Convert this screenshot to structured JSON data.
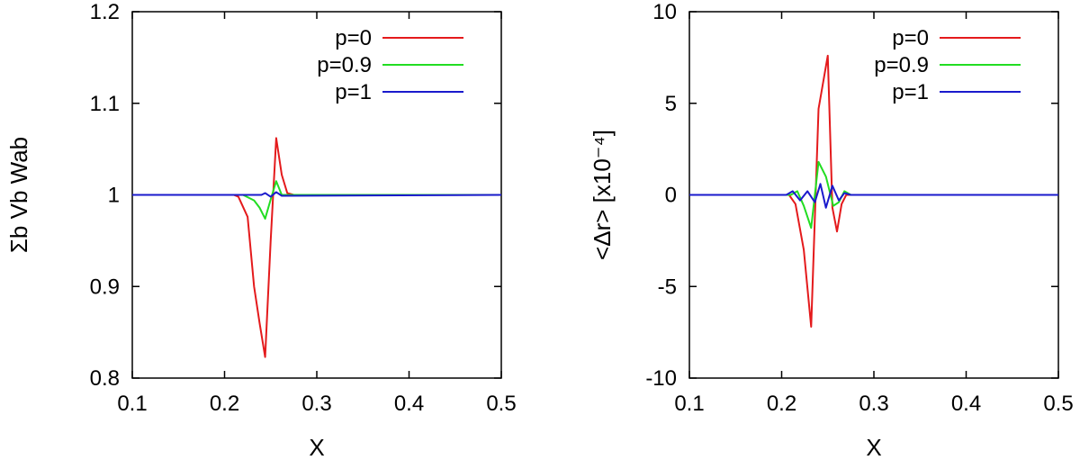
{
  "chart_data": [
    {
      "type": "line",
      "title": "",
      "xlabel": "X",
      "ylabel": "Σb Vb Wab",
      "xlim": [
        0.1,
        0.5
      ],
      "ylim": [
        0.8,
        1.2
      ],
      "xticks": [
        "0.1",
        "0.2",
        "0.3",
        "0.4",
        "0.5"
      ],
      "yticks": [
        "0.8",
        "0.9",
        "1",
        "1.1",
        "1.2"
      ],
      "grid": false,
      "legend_position": "top-right",
      "series": [
        {
          "name": "p=0",
          "color": "#e41a1c",
          "x": [
            0.1,
            0.2,
            0.21,
            0.215,
            0.225,
            0.232,
            0.238,
            0.244,
            0.25,
            0.256,
            0.262,
            0.268,
            0.275,
            0.3,
            0.5
          ],
          "y": [
            1.0,
            1.0,
            1.0,
            0.998,
            0.976,
            0.9,
            0.86,
            0.823,
            0.95,
            1.062,
            1.022,
            1.002,
            1.0,
            1.0,
            1.0
          ]
        },
        {
          "name": "p=0.9",
          "color": "#22dd22",
          "x": [
            0.1,
            0.2,
            0.22,
            0.232,
            0.238,
            0.244,
            0.25,
            0.256,
            0.262,
            0.268,
            0.3,
            0.5
          ],
          "y": [
            1.0,
            1.0,
            1.0,
            0.994,
            0.986,
            0.974,
            0.995,
            1.015,
            1.0,
            1.0,
            1.0,
            1.0
          ]
        },
        {
          "name": "p=1",
          "color": "#1a1acc",
          "x": [
            0.1,
            0.24,
            0.244,
            0.25,
            0.256,
            0.262,
            0.5
          ],
          "y": [
            1.0,
            1.0,
            1.002,
            0.998,
            1.003,
            0.999,
            1.0
          ]
        }
      ]
    },
    {
      "type": "line",
      "title": "",
      "xlabel": "X",
      "ylabel": "<Δr> [x10⁻⁴]",
      "xlim": [
        0.1,
        0.5
      ],
      "ylim": [
        -10,
        10
      ],
      "xticks": [
        "0.1",
        "0.2",
        "0.3",
        "0.4",
        "0.5"
      ],
      "yticks": [
        "-10",
        "-5",
        "0",
        "5",
        "10"
      ],
      "grid": false,
      "legend_position": "top-right",
      "series": [
        {
          "name": "p=0",
          "color": "#e41a1c",
          "x": [
            0.1,
            0.2,
            0.208,
            0.215,
            0.224,
            0.232,
            0.24,
            0.25,
            0.255,
            0.26,
            0.265,
            0.27,
            0.3,
            0.5
          ],
          "y": [
            0,
            0,
            0,
            -0.5,
            -3.0,
            -7.2,
            4.7,
            7.6,
            -0.7,
            -2.0,
            -0.5,
            0,
            0,
            0
          ]
        },
        {
          "name": "p=0.9",
          "color": "#22dd22",
          "x": [
            0.1,
            0.2,
            0.21,
            0.217,
            0.224,
            0.232,
            0.24,
            0.248,
            0.256,
            0.262,
            0.268,
            0.275,
            0.3,
            0.5
          ],
          "y": [
            0,
            0,
            0,
            0.2,
            -0.6,
            -1.8,
            1.8,
            1.0,
            -0.6,
            -0.4,
            0.2,
            0,
            0,
            0
          ]
        },
        {
          "name": "p=1",
          "color": "#1a1acc",
          "x": [
            0.1,
            0.205,
            0.212,
            0.22,
            0.228,
            0.236,
            0.242,
            0.248,
            0.255,
            0.262,
            0.268,
            0.275,
            0.5
          ],
          "y": [
            0,
            0,
            0.2,
            -0.3,
            0.2,
            -0.4,
            0.6,
            -0.7,
            0.5,
            -0.3,
            0.1,
            0,
            0
          ]
        }
      ]
    }
  ]
}
